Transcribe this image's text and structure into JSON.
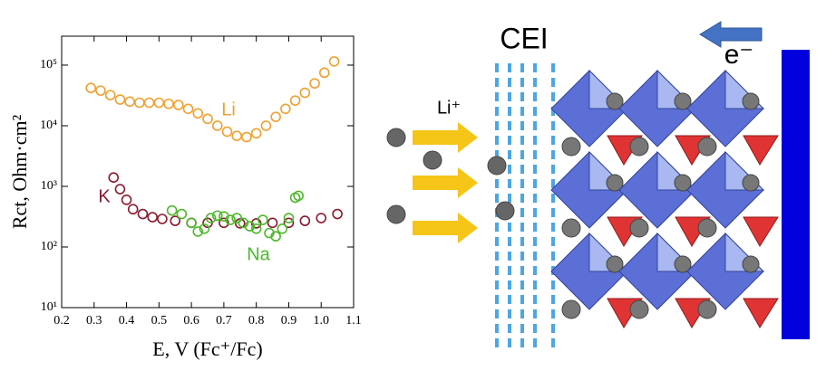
{
  "chart_data": {
    "type": "scatter",
    "xlabel": "E, V (Fc⁺/Fc)",
    "ylabel": "Rct, Ohm·cm²",
    "xlim": [
      0.2,
      1.1
    ],
    "xticks": [
      0.2,
      0.3,
      0.4,
      0.5,
      0.6,
      0.7,
      0.8,
      0.9,
      {
        "value": 1,
        "label": "1.0"
      },
      1.1
    ],
    "ylim": [
      10,
      300000
    ],
    "ylog": true,
    "yticks": [
      {
        "value": 10,
        "label": "10¹"
      },
      {
        "value": 100,
        "label": "10²"
      },
      {
        "value": 1000,
        "label": "10³"
      },
      {
        "value": 10000,
        "label": "10⁴"
      },
      {
        "value": 100000,
        "label": "10⁵"
      }
    ],
    "series": [
      {
        "name": "Li",
        "color": "#f0a030",
        "x": [
          0.29,
          0.32,
          0.35,
          0.38,
          0.41,
          0.44,
          0.47,
          0.5,
          0.53,
          0.56,
          0.59,
          0.62,
          0.65,
          0.68,
          0.71,
          0.74,
          0.77,
          0.8,
          0.83,
          0.86,
          0.89,
          0.92,
          0.95,
          0.98,
          1.01,
          1.04
        ],
        "values": [
          42000,
          38000,
          32000,
          27000,
          25000,
          24000,
          24000,
          24000,
          23000,
          22000,
          19000,
          16000,
          13000,
          10000,
          8000,
          6800,
          6500,
          7500,
          10000,
          14000,
          19000,
          26000,
          35000,
          50000,
          75000,
          115000
        ]
      },
      {
        "name": "K",
        "color": "#8b1a2e",
        "x": [
          0.36,
          0.38,
          0.4,
          0.42,
          0.45,
          0.48,
          0.51,
          0.55,
          0.6,
          0.65,
          0.7,
          0.75,
          0.8,
          0.85,
          0.9,
          0.95,
          1.0,
          1.05
        ],
        "values": [
          1400,
          900,
          600,
          420,
          350,
          310,
          290,
          270,
          250,
          250,
          250,
          245,
          245,
          250,
          250,
          270,
          300,
          350
        ]
      },
      {
        "name": "Na",
        "color": "#4cb82a",
        "x": [
          0.54,
          0.57,
          0.6,
          0.62,
          0.64,
          0.66,
          0.68,
          0.7,
          0.72,
          0.74,
          0.76,
          0.78,
          0.8,
          0.82,
          0.84,
          0.86,
          0.88,
          0.9,
          0.92,
          0.93
        ],
        "values": [
          400,
          350,
          250,
          180,
          200,
          300,
          330,
          320,
          280,
          300,
          250,
          220,
          200,
          280,
          170,
          150,
          200,
          300,
          650,
          700
        ]
      }
    ]
  },
  "diagram": {
    "cei": "CEI",
    "li_ion": "Li⁺",
    "electron": "e⁻"
  }
}
